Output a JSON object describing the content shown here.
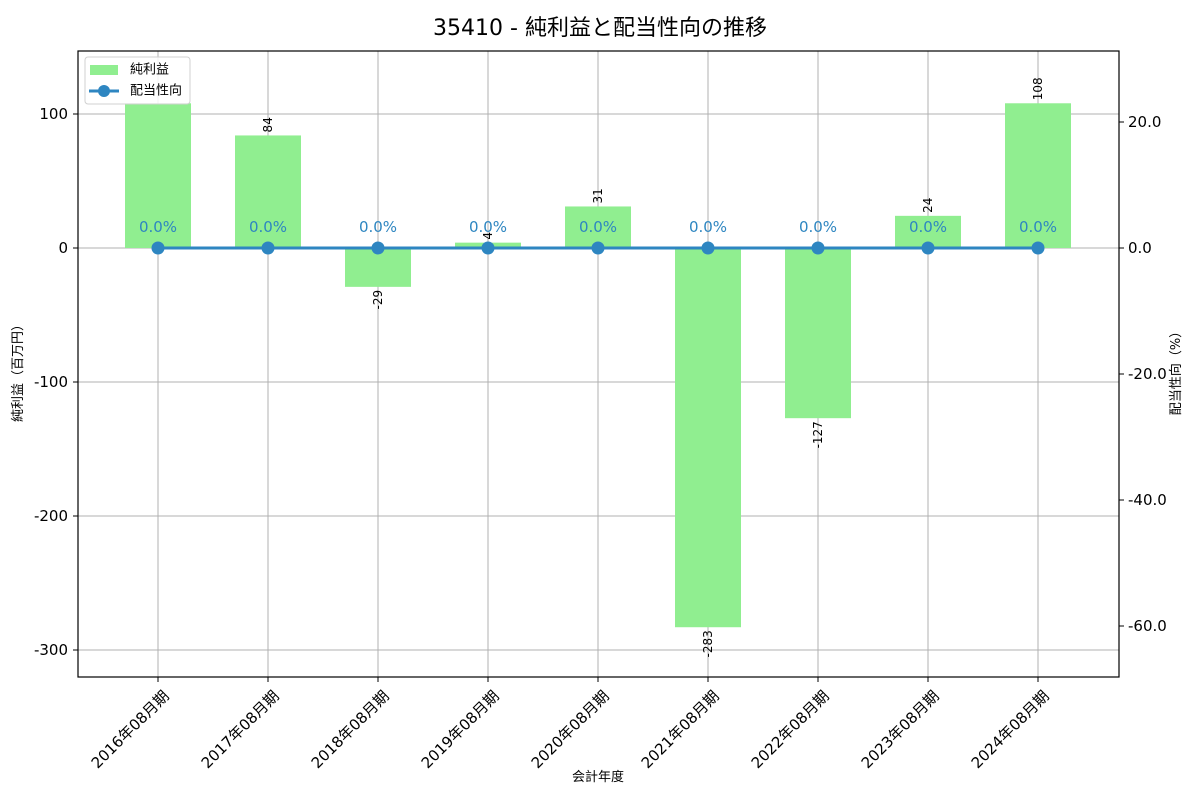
{
  "title": "35410 - 純利益と配当性向の推移",
  "colors": {
    "bar": "#90ee90",
    "line": "#2e86c1",
    "grid": "#b0b0b0",
    "axis": "#000000"
  },
  "legend": {
    "bar_label": "純利益",
    "line_label": "配当性向"
  },
  "axes": {
    "xlabel": "会計年度",
    "ylabel_left": "純利益（百万円）",
    "ylabel_right": "配当性向（%）",
    "left_ticks": [
      "100",
      "0",
      "-100",
      "-200",
      "-300"
    ],
    "right_ticks": [
      "20.0",
      "0.0",
      "-20.0",
      "-40.0",
      "-60.0"
    ]
  },
  "chart_data": {
    "type": "bar",
    "title": "35410 - 純利益と配当性向の推移",
    "xlabel": "会計年度",
    "ylabel": "純利益（百万円）",
    "ylabel_right": "配当性向（%）",
    "categories": [
      "2016年08月期",
      "2017年08月期",
      "2018年08月期",
      "2019年08月期",
      "2020年08月期",
      "2021年08月期",
      "2022年08月期",
      "2023年08月期",
      "2024年08月期"
    ],
    "series": [
      {
        "name": "純利益",
        "type": "bar",
        "axis": "left",
        "values": [
          108,
          84,
          -29,
          4,
          31,
          -283,
          -127,
          24,
          108
        ],
        "labels": [
          "",
          "84",
          "-29",
          "4",
          "31",
          "-283",
          "-127",
          "24",
          "108"
        ]
      },
      {
        "name": "配当性向",
        "type": "line",
        "axis": "right",
        "values": [
          0.0,
          0.0,
          0.0,
          0.0,
          0.0,
          0.0,
          0.0,
          0.0,
          0.0
        ],
        "labels": [
          "0.0%",
          "0.0%",
          "0.0%",
          "0.0%",
          "0.0%",
          "0.0%",
          "0.0%",
          "0.0%",
          "0.0%"
        ]
      }
    ],
    "ylim": [
      -320,
      147
    ],
    "ylim_right": [
      -68.1,
      31.3
    ],
    "grid": true,
    "legend_position": "upper left"
  }
}
